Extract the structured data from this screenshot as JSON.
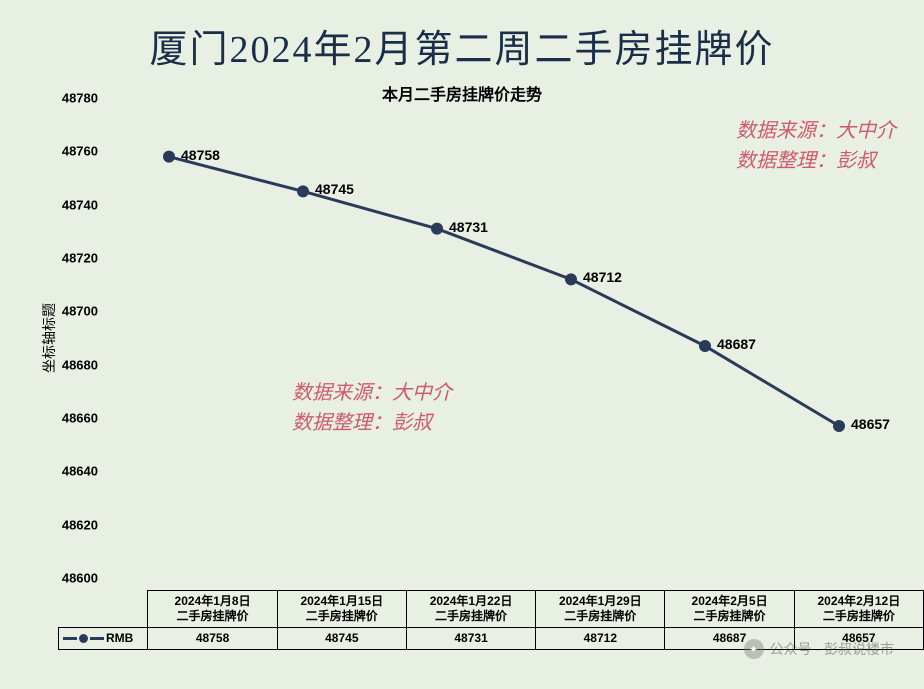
{
  "title": "厦门2024年2月第二周二手房挂牌价",
  "subtitle": "本月二手房挂牌价走势",
  "ylabel": "坐标轴标题",
  "chart": {
    "type": "line",
    "line_color": "#2a3b5a",
    "marker_color": "#2a3b5a",
    "line_width": 3,
    "marker_radius": 6,
    "background_color": "#e8efe3",
    "ylim": [
      48600,
      48780
    ],
    "ytick_step": 20,
    "categories": [
      "2024年1月8日二手房挂牌价",
      "2024年1月15日二手房挂牌价",
      "2024年1月22日二手房挂牌价",
      "2024年1月29日二手房挂牌价",
      "2024年2月5日二手房挂牌价",
      "2024年2月12日二手房挂牌价"
    ],
    "cat_line1": [
      "2024年1月8日",
      "2024年1月15日",
      "2024年1月22日",
      "2024年1月29日",
      "2024年2月5日",
      "2024年2月12日"
    ],
    "cat_line2": [
      "二手房挂牌价",
      "二手房挂牌价",
      "二手房挂牌价",
      "二手房挂牌价",
      "二手房挂牌价",
      "二手房挂牌价"
    ],
    "values": [
      48758,
      48745,
      48731,
      48712,
      48687,
      48657
    ],
    "value_labels": [
      "48758",
      "48745",
      "48731",
      "48712",
      "48687",
      "48657"
    ]
  },
  "legend_label": "RMB",
  "annotation": {
    "line1": "数据来源：大中介",
    "line2": "数据整理：彭叔",
    "color": "#d05a6a"
  },
  "watermark": "公众号 · 彭叔说楼市",
  "yticks": [
    "48780",
    "48760",
    "48740",
    "48720",
    "48700",
    "48680",
    "48660",
    "48640",
    "48620",
    "48600"
  ]
}
